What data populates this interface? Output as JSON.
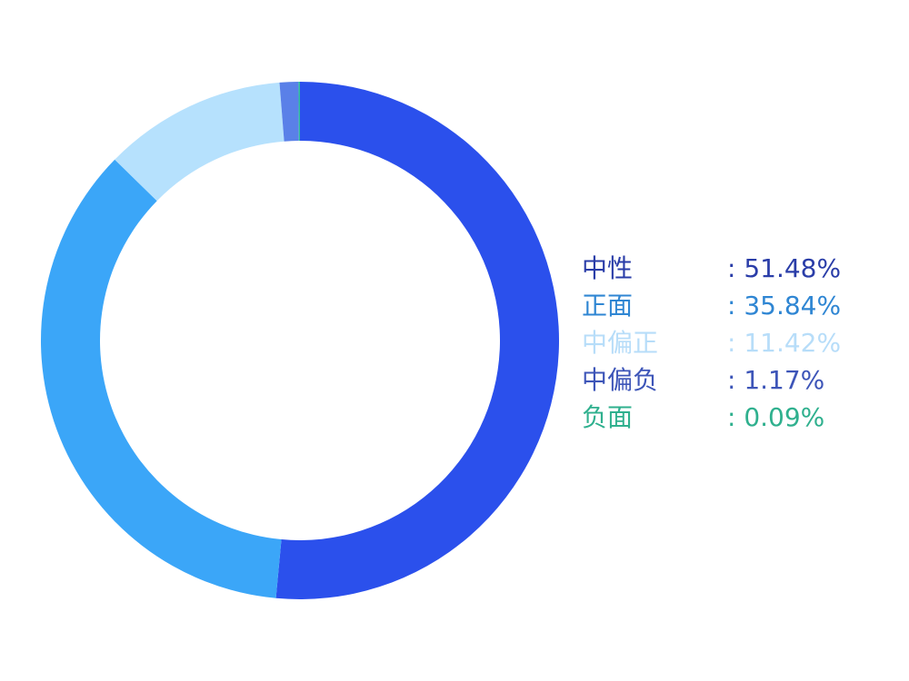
{
  "chart_data": {
    "type": "pie",
    "style": "donut",
    "legend_position": "right",
    "slices": [
      {
        "label": "中性",
        "value": 51.48,
        "display": ": 51.48%",
        "color": "#2B50EC"
      },
      {
        "label": "正面",
        "value": 35.84,
        "display": ": 35.84%",
        "color": "#3BA6F8"
      },
      {
        "label": "中偏正",
        "value": 11.42,
        "display": ": 11.42%",
        "color": "#B6E1FD"
      },
      {
        "label": "中偏负",
        "value": 1.17,
        "display": ": 1.17%",
        "color": "#5A80E8"
      },
      {
        "label": "负面",
        "value": 0.09,
        "display": ": 0.09%",
        "color": "#2FBF9E"
      }
    ],
    "legend_text_colors": [
      "#2A3DA8",
      "#2F86D3",
      "#B7DDF9",
      "#3D55B8",
      "#2FB08E"
    ]
  }
}
